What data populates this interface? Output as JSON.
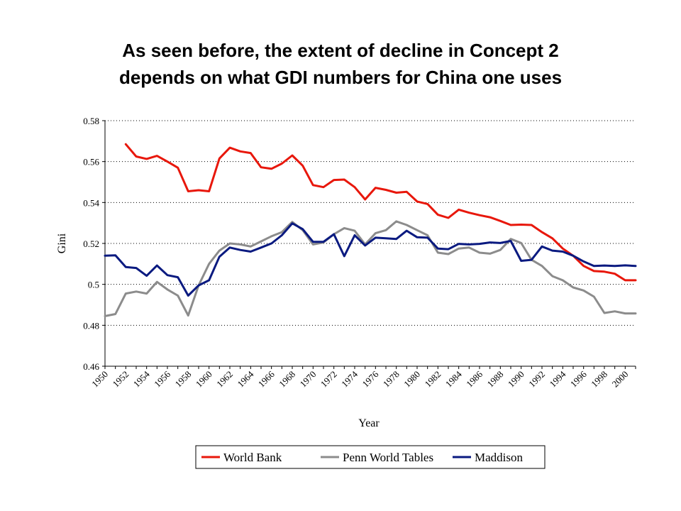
{
  "slide": {
    "title_line1": "As seen before, the extent of decline in Concept 2",
    "title_line2": "depends on what GDI numbers for China one uses"
  },
  "chart_data": {
    "type": "line",
    "xlabel": "Year",
    "ylabel": "Gini",
    "xlim": [
      1950,
      2001
    ],
    "ylim": [
      0.46,
      0.58
    ],
    "y_ticks": [
      0.46,
      0.48,
      0.5,
      0.52,
      0.54,
      0.56,
      0.58
    ],
    "y_tick_labels": [
      "0.46",
      "0.48",
      "0.5",
      "0.52",
      "0.54",
      "0.56",
      "0.58"
    ],
    "x_ticks": [
      "1950",
      "1952",
      "1954",
      "1956",
      "1958",
      "1960",
      "1962",
      "1964",
      "1966",
      "1968",
      "1970",
      "1972",
      "1974",
      "1976",
      "1978",
      "1980",
      "1982",
      "1984",
      "1986",
      "1988",
      "1990",
      "1992",
      "1994",
      "1996",
      "1998",
      "2000"
    ],
    "grid": "horizontal dotted",
    "legend": "bottom",
    "series": [
      {
        "name": "World Bank",
        "color": "#e8170b",
        "x": [
          1952,
          1953,
          1954,
          1955,
          1956,
          1957,
          1958,
          1959,
          1960,
          1961,
          1962,
          1963,
          1964,
          1965,
          1966,
          1967,
          1968,
          1969,
          1970,
          1971,
          1972,
          1973,
          1974,
          1975,
          1976,
          1977,
          1978,
          1979,
          1980,
          1981,
          1982,
          1983,
          1984,
          1985,
          1986,
          1987,
          1988,
          1989,
          1990,
          1991,
          1992,
          1993,
          1994,
          1995,
          1996,
          1997,
          1998,
          1999,
          2000,
          2001
        ],
        "values": [
          0.5685,
          0.5625,
          0.5613,
          0.5628,
          0.56,
          0.557,
          0.5455,
          0.546,
          0.5455,
          0.5615,
          0.5668,
          0.565,
          0.5642,
          0.5572,
          0.5565,
          0.559,
          0.563,
          0.558,
          0.5485,
          0.5475,
          0.551,
          0.5512,
          0.5475,
          0.5415,
          0.5472,
          0.5462,
          0.5448,
          0.5452,
          0.5405,
          0.5393,
          0.534,
          0.5325,
          0.5365,
          0.535,
          0.5338,
          0.5328,
          0.531,
          0.529,
          0.5292,
          0.529,
          0.5255,
          0.5225,
          0.5175,
          0.514,
          0.509,
          0.5065,
          0.5062,
          0.5052,
          0.502,
          0.502
        ]
      },
      {
        "name": "Penn World Tables",
        "color": "#8c8c8c",
        "x": [
          1950,
          1951,
          1952,
          1953,
          1954,
          1955,
          1956,
          1957,
          1958,
          1959,
          1960,
          1961,
          1962,
          1963,
          1964,
          1965,
          1966,
          1967,
          1968,
          1969,
          1970,
          1971,
          1972,
          1973,
          1974,
          1975,
          1976,
          1977,
          1978,
          1979,
          1980,
          1981,
          1982,
          1983,
          1984,
          1985,
          1986,
          1987,
          1988,
          1989,
          1990,
          1991,
          1992,
          1993,
          1994,
          1995,
          1996,
          1997,
          1998,
          1999,
          2000,
          2001
        ],
        "values": [
          0.4845,
          0.4855,
          0.4955,
          0.4965,
          0.4955,
          0.5012,
          0.4975,
          0.4945,
          0.4848,
          0.4995,
          0.51,
          0.5165,
          0.52,
          0.5195,
          0.5185,
          0.521,
          0.5235,
          0.5255,
          0.5305,
          0.5265,
          0.5195,
          0.5205,
          0.5245,
          0.5275,
          0.5262,
          0.5195,
          0.525,
          0.5265,
          0.5308,
          0.529,
          0.5265,
          0.524,
          0.5155,
          0.5148,
          0.5175,
          0.518,
          0.5155,
          0.515,
          0.5168,
          0.5222,
          0.5202,
          0.512,
          0.509,
          0.504,
          0.502,
          0.4985,
          0.497,
          0.494,
          0.486,
          0.4868,
          0.4858,
          0.4858
        ]
      },
      {
        "name": "Maddison",
        "color": "#0a1a80",
        "x": [
          1950,
          1951,
          1952,
          1953,
          1954,
          1955,
          1956,
          1957,
          1958,
          1959,
          1960,
          1961,
          1962,
          1963,
          1964,
          1965,
          1966,
          1967,
          1968,
          1969,
          1970,
          1971,
          1972,
          1973,
          1974,
          1975,
          1976,
          1977,
          1978,
          1979,
          1980,
          1981,
          1982,
          1983,
          1984,
          1985,
          1986,
          1987,
          1988,
          1989,
          1990,
          1991,
          1992,
          1993,
          1994,
          1995,
          1996,
          1997,
          1998,
          1999,
          2000,
          2001
        ],
        "values": [
          0.514,
          0.5142,
          0.5085,
          0.508,
          0.5042,
          0.5092,
          0.5045,
          0.5035,
          0.4945,
          0.4995,
          0.502,
          0.5135,
          0.518,
          0.5168,
          0.516,
          0.518,
          0.52,
          0.524,
          0.5298,
          0.527,
          0.5208,
          0.5208,
          0.5245,
          0.5138,
          0.524,
          0.519,
          0.5228,
          0.5225,
          0.5222,
          0.5262,
          0.523,
          0.5228,
          0.5175,
          0.5172,
          0.5198,
          0.5195,
          0.5198,
          0.5205,
          0.5202,
          0.5212,
          0.5115,
          0.512,
          0.5185,
          0.5165,
          0.516,
          0.514,
          0.5112,
          0.509,
          0.5092,
          0.509,
          0.5093,
          0.509
        ]
      }
    ]
  }
}
